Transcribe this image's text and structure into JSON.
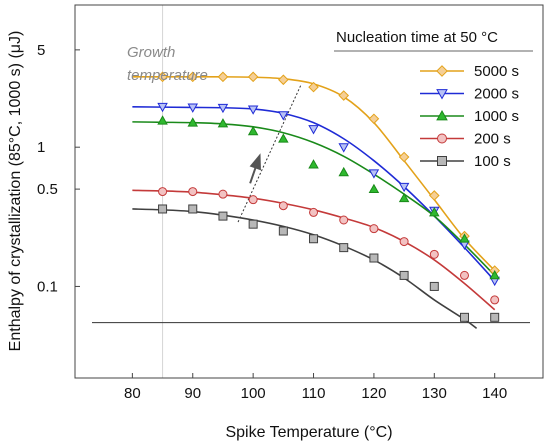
{
  "chart_data": {
    "type": "scatter",
    "xlabel": "Spike Temperature (°C)",
    "ylabel": "Enthalpy of crystallization (85°C, 1000 s) (μJ)",
    "x_ticks": [
      80,
      90,
      100,
      110,
      120,
      130,
      140
    ],
    "x_tick_labels": [
      "80",
      "90",
      "100",
      "110",
      "120",
      "130",
      "140"
    ],
    "xlim": [
      70.5,
      148
    ],
    "y_scale": "log",
    "y_ticks": [
      0.1,
      0.5,
      1,
      5
    ],
    "y_tick_labels": [
      "0.1",
      "0.5",
      "1",
      "5"
    ],
    "ylim": [
      0.022,
      10.5
    ],
    "grid": false,
    "legend": {
      "title": "Nucleation time at 50 °C",
      "position": "top-right"
    },
    "annotations": {
      "growth_label_line1": "Growth",
      "growth_label_line2": "temperature",
      "growth_temperature_x": 85,
      "reference_line_y": 0.055,
      "arrow_line": {
        "x": [
          97.5,
          108
        ],
        "y": [
          0.29,
          2.85
        ]
      },
      "arrow": {
        "x": [
          99.5,
          101
        ],
        "y": [
          0.55,
          0.85
        ]
      }
    },
    "series": [
      {
        "name": "5000 s",
        "color": "#e3a21a",
        "fill": "#f5cf96",
        "marker": "diamond",
        "x": [
          85,
          90,
          95,
          100,
          105,
          110,
          115,
          120,
          125,
          130,
          135,
          140
        ],
        "y": [
          3.2,
          3.2,
          3.2,
          3.2,
          3.05,
          2.7,
          2.35,
          1.6,
          0.85,
          0.45,
          0.23,
          0.13
        ],
        "fit_x": [
          80,
          85,
          90,
          95,
          100,
          105,
          110,
          115,
          120,
          125,
          130,
          135,
          140
        ],
        "fit_y": [
          3.2,
          3.2,
          3.2,
          3.2,
          3.18,
          3.1,
          2.85,
          2.3,
          1.5,
          0.8,
          0.42,
          0.22,
          0.13
        ]
      },
      {
        "name": "2000 s",
        "color": "#1f2bd6",
        "fill": "#b8c2f5",
        "marker": "triangle-down",
        "x": [
          85,
          90,
          95,
          100,
          105,
          110,
          115,
          120,
          125,
          130,
          135,
          140
        ],
        "y": [
          1.95,
          1.93,
          1.92,
          1.87,
          1.7,
          1.35,
          1.0,
          0.65,
          0.52,
          0.35,
          0.2,
          0.11
        ],
        "fit_x": [
          80,
          85,
          90,
          95,
          100,
          105,
          110,
          115,
          120,
          125,
          130,
          135,
          140
        ],
        "fit_y": [
          1.95,
          1.94,
          1.93,
          1.92,
          1.88,
          1.75,
          1.5,
          1.15,
          0.8,
          0.52,
          0.32,
          0.19,
          0.11
        ]
      },
      {
        "name": "1000 s",
        "color": "#1a8a1a",
        "fill": "#2fb82f",
        "marker": "triangle-up",
        "x": [
          85,
          90,
          95,
          100,
          105,
          110,
          115,
          120,
          125,
          130,
          135,
          140
        ],
        "y": [
          1.55,
          1.5,
          1.48,
          1.3,
          1.15,
          0.75,
          0.66,
          0.5,
          0.43,
          0.34,
          0.22,
          0.12
        ],
        "fit_x": [
          80,
          85,
          90,
          95,
          100,
          105,
          110,
          115,
          120,
          125,
          130,
          135,
          140
        ],
        "fit_y": [
          1.52,
          1.51,
          1.5,
          1.47,
          1.4,
          1.27,
          1.08,
          0.86,
          0.64,
          0.46,
          0.32,
          0.2,
          0.12
        ]
      },
      {
        "name": "200 s",
        "color": "#c43a3a",
        "fill": "#f2c2c2",
        "marker": "circle",
        "x": [
          85,
          90,
          95,
          100,
          105,
          110,
          115,
          120,
          125,
          130,
          135,
          140
        ],
        "y": [
          0.48,
          0.48,
          0.46,
          0.42,
          0.38,
          0.34,
          0.3,
          0.26,
          0.21,
          0.17,
          0.12,
          0.08
        ],
        "fit_x": [
          80,
          85,
          90,
          95,
          100,
          105,
          110,
          115,
          120,
          125,
          130,
          135,
          140
        ],
        "fit_y": [
          0.49,
          0.485,
          0.475,
          0.455,
          0.43,
          0.395,
          0.355,
          0.31,
          0.265,
          0.21,
          0.155,
          0.105,
          0.068
        ]
      },
      {
        "name": "100 s",
        "color": "#404040",
        "fill": "#b8b8b8",
        "marker": "square",
        "x": [
          85,
          90,
          95,
          100,
          105,
          110,
          115,
          120,
          125,
          130,
          135,
          140
        ],
        "y": [
          0.36,
          0.36,
          0.32,
          0.28,
          0.25,
          0.22,
          0.19,
          0.16,
          0.12,
          0.1,
          0.06,
          0.06
        ],
        "fit_x": [
          80,
          85,
          90,
          95,
          100,
          105,
          110,
          115,
          120,
          125,
          130,
          135,
          137
        ],
        "fit_y": [
          0.36,
          0.355,
          0.345,
          0.325,
          0.3,
          0.27,
          0.235,
          0.195,
          0.155,
          0.115,
          0.08,
          0.058,
          0.05
        ]
      }
    ]
  }
}
